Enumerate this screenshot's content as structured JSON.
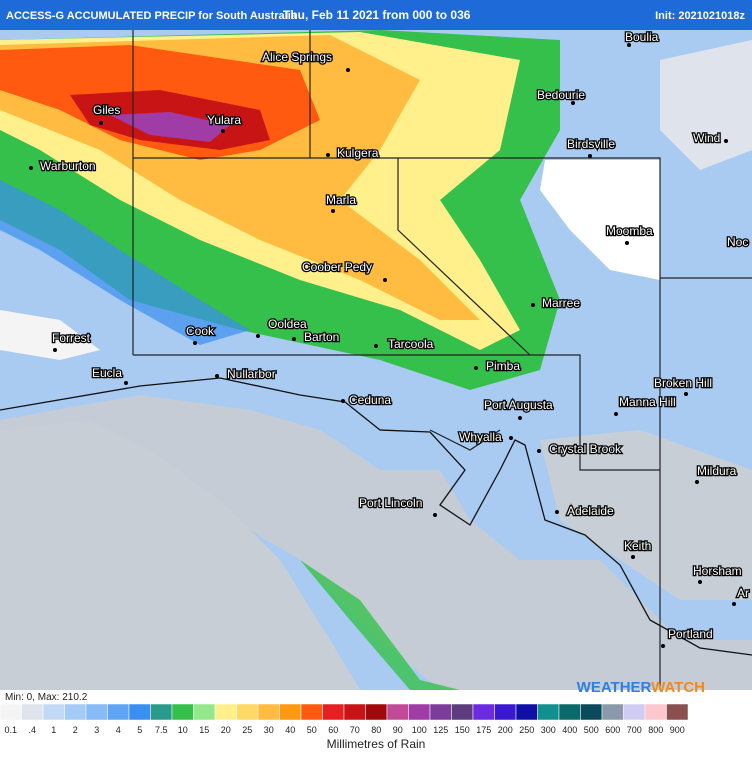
{
  "header": {
    "title": "ACCESS-G ACCUMULATED PRECIP for South Australia",
    "period": "Thu, Feb 11 2021 from 000 to 036",
    "init": "Init: 2021021018z"
  },
  "places": [
    "Boulia",
    "Alice Springs",
    "Bedourie",
    "Giles",
    "Yulara",
    "Wind",
    "Birdsville",
    "Kulgera",
    "Warburton",
    "Marla",
    "Moomba",
    "Noc",
    "Coober Pedy",
    "Marree",
    "Forrest",
    "Cook",
    "Ooldea",
    "Barton",
    "Tarcoola",
    "Pimba",
    "Eucla",
    "Nullarbor",
    "Broken Hill",
    "Ceduna",
    "Port Augusta",
    "Manna Hill",
    "Whyalla",
    "Crystal Brook",
    "Mildura",
    "Port Lincoln",
    "Adelaide",
    "Keith",
    "Horsham",
    "Ar",
    "Portland"
  ],
  "stats": "Min: 0, Max: 210.2",
  "legend": {
    "labels": [
      "0.1",
      ".4",
      "1",
      "2",
      "3",
      "4",
      "5",
      "7.5",
      "10",
      "15",
      "20",
      "25",
      "30",
      "40",
      "50",
      "60",
      "70",
      "80",
      "90",
      "100",
      "125",
      "150",
      "175",
      "200",
      "250",
      "300",
      "400",
      "500",
      "600",
      "700",
      "800",
      "900"
    ],
    "colors": [
      "#f4f4f4",
      "#dfe4ec",
      "#c2d8f4",
      "#a4cbf6",
      "#86bbf6",
      "#5ea6f4",
      "#3a8ff0",
      "#2a9a8a",
      "#34c04a",
      "#92e88a",
      "#fff08c",
      "#ffd866",
      "#ffbc40",
      "#ff9a10",
      "#ff5a10",
      "#e62020",
      "#c81414",
      "#a00a0a",
      "#c04a96",
      "#a03ca6",
      "#7e3c9a",
      "#5c3c7c",
      "#6a2ae0",
      "#3a18d0",
      "#1010a8",
      "#12908e",
      "#0a6a6a",
      "#0a4a5a",
      "#8a9aaa",
      "#d0ccf4",
      "#fcc8cc",
      "#8a5050"
    ],
    "title": "Millimetres of Rain"
  },
  "watermark": [
    "WEATHER",
    "WATCH"
  ]
}
